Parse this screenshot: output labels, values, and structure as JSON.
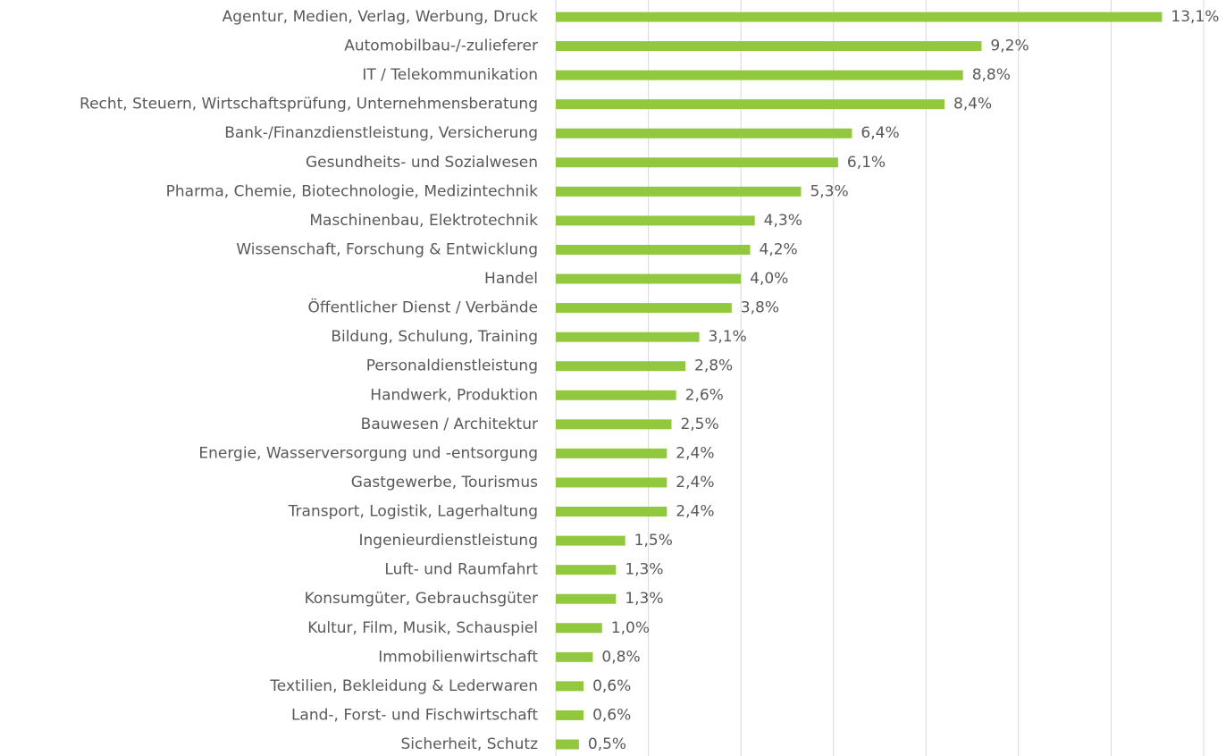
{
  "chart_data": {
    "type": "hbar",
    "categories": [
      "Agentur, Medien, Verlag, Werbung, Druck",
      "Automobilbau-/-zulieferer",
      "IT / Telekommunikation",
      "Recht, Steuern, Wirtschaftsprüfung, Unternehmensberatung",
      "Bank-/Finanzdienstleistung, Versicherung",
      "Gesundheits- und Sozialwesen",
      "Pharma, Chemie, Biotechnologie, Medizintechnik",
      "Maschinenbau, Elektrotechnik",
      "Wissenschaft, Forschung & Entwicklung",
      "Handel",
      "Öffentlicher Dienst / Verbände",
      "Bildung, Schulung, Training",
      "Personaldienstleistung",
      "Handwerk, Produktion",
      "Bauwesen / Architektur",
      "Energie, Wasserversorgung und -entsorgung",
      "Gastgewerbe, Tourismus",
      "Transport, Logistik, Lagerhaltung",
      "Ingenieurdienstleistung",
      "Luft- und Raumfahrt",
      "Konsumgüter, Gebrauchsgüter",
      "Kultur, Film, Musik, Schauspiel",
      "Immobilienwirtschaft",
      "Textilien, Bekleidung & Lederwaren",
      "Land-, Forst- und Fischwirtschaft",
      "Sicherheit, Schutz"
    ],
    "values": [
      13.1,
      9.2,
      8.8,
      8.4,
      6.4,
      6.1,
      5.3,
      4.3,
      4.2,
      4.0,
      3.8,
      3.1,
      2.8,
      2.6,
      2.5,
      2.4,
      2.4,
      2.4,
      1.5,
      1.3,
      1.3,
      1.0,
      0.8,
      0.6,
      0.6,
      0.5
    ],
    "value_labels": [
      "13,1%",
      "9,2%",
      "8,8%",
      "8,4%",
      "6,4%",
      "6,1%",
      "5,3%",
      "4,3%",
      "4,2%",
      "4,0%",
      "3,8%",
      "3,1%",
      "2,8%",
      "2,6%",
      "2,5%",
      "2,4%",
      "2,4%",
      "2,4%",
      "1,5%",
      "1,3%",
      "1,3%",
      "1,0%",
      "0,8%",
      "0,6%",
      "0,6%",
      "0,5%"
    ],
    "color": "#92c83e",
    "xlim": [
      0,
      14
    ],
    "xticks": [
      0,
      2,
      4,
      6,
      8,
      10,
      12,
      14
    ],
    "grid": true
  }
}
